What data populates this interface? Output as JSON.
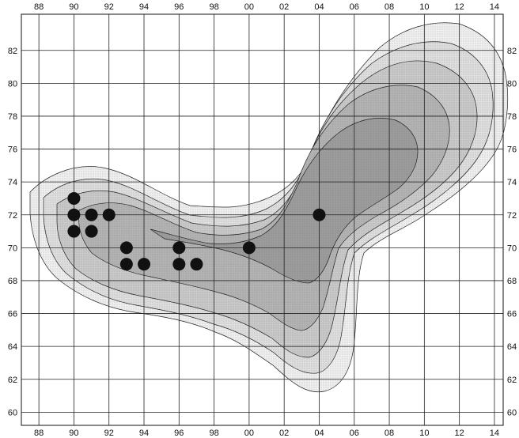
{
  "map": {
    "top_labels": [
      "88",
      "90",
      "92",
      "94",
      "96",
      "98",
      "00",
      "02",
      "04",
      "06",
      "08",
      "10",
      "12",
      "14"
    ],
    "bottom_labels": [
      "88",
      "90",
      "92",
      "94",
      "96",
      "98",
      "00",
      "02",
      "04",
      "06",
      "08",
      "10",
      "12",
      "14"
    ],
    "left_labels": [
      "82",
      "80",
      "78",
      "76",
      "74",
      "72",
      "70",
      "68",
      "66",
      "64",
      "62",
      "60"
    ],
    "right_labels": [
      "82",
      "80",
      "78",
      "76",
      "74",
      "72",
      "70",
      "68",
      "66",
      "64",
      "62",
      "60"
    ],
    "x_range": [
      88,
      115.5
    ],
    "y_range": [
      59.2,
      84.2
    ],
    "grid_interval": 2,
    "shading": [
      "#efefef",
      "#dedede",
      "#c9c9c9",
      "#b3b3b3",
      "#9c9c9c"
    ],
    "contour_color": "#222222",
    "dot_color": "#111111",
    "records": [
      {
        "x": 91,
        "y": 73
      },
      {
        "x": 91,
        "y": 72
      },
      {
        "x": 92,
        "y": 72
      },
      {
        "x": 93,
        "y": 72
      },
      {
        "x": 91,
        "y": 71
      },
      {
        "x": 92,
        "y": 71
      },
      {
        "x": 94,
        "y": 70
      },
      {
        "x": 97,
        "y": 70
      },
      {
        "x": 101,
        "y": 70
      },
      {
        "x": 94,
        "y": 69
      },
      {
        "x": 95,
        "y": 69
      },
      {
        "x": 97,
        "y": 69
      },
      {
        "x": 98,
        "y": 69
      },
      {
        "x": 105,
        "y": 72
      }
    ]
  }
}
